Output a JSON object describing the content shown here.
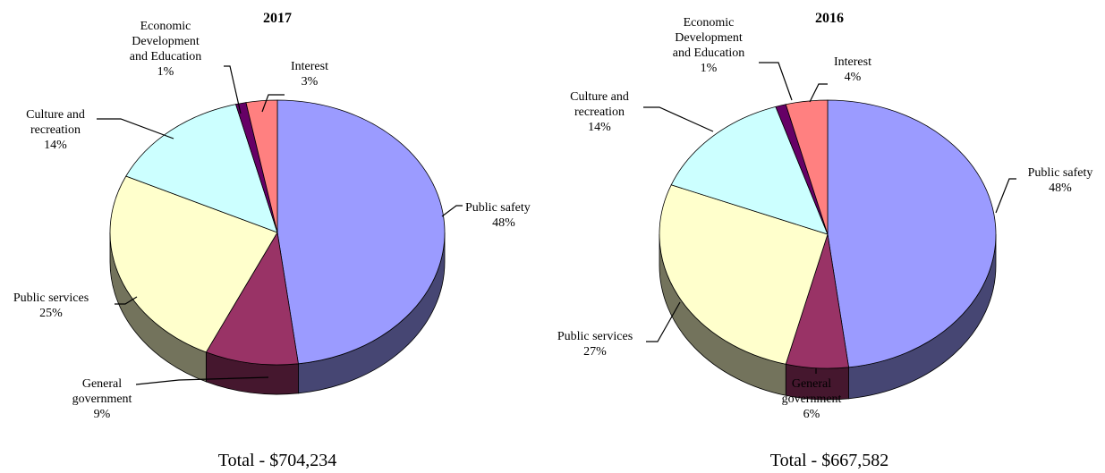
{
  "colors": {
    "public_safety": "#9b9bff",
    "general_government": "#993366",
    "public_services": "#ffffcc",
    "culture_and_recreation": "#ccffff",
    "economic_development_and_education": "#660066",
    "interest": "#ff8080"
  },
  "chart_data": [
    {
      "type": "pie",
      "title": "2017",
      "total_label": "Total - $704,234",
      "slices": [
        {
          "key": "public_safety",
          "label": [
            "Public safety"
          ],
          "pct": "48%",
          "value": 48
        },
        {
          "key": "general_government",
          "label": [
            "General",
            "government"
          ],
          "pct": "9%",
          "value": 9
        },
        {
          "key": "public_services",
          "label": [
            "Public services"
          ],
          "pct": "25%",
          "value": 25
        },
        {
          "key": "culture_and_recreation",
          "label": [
            "Culture and",
            "recreation"
          ],
          "pct": "14%",
          "value": 14
        },
        {
          "key": "economic_development_and_education",
          "label": [
            "Economic",
            "Development",
            "and Education"
          ],
          "pct": "1%",
          "value": 1
        },
        {
          "key": "interest",
          "label": [
            "Interest"
          ],
          "pct": "3%",
          "value": 3
        }
      ]
    },
    {
      "type": "pie",
      "title": "2016",
      "total_label": "Total - $667,582",
      "slices": [
        {
          "key": "public_safety",
          "label": [
            "Public safety"
          ],
          "pct": "48%",
          "value": 48
        },
        {
          "key": "general_government",
          "label": [
            "General",
            "government"
          ],
          "pct": "6%",
          "value": 6
        },
        {
          "key": "public_services",
          "label": [
            "Public services"
          ],
          "pct": "27%",
          "value": 27
        },
        {
          "key": "culture_and_recreation",
          "label": [
            "Culture and",
            "recreation"
          ],
          "pct": "14%",
          "value": 14
        },
        {
          "key": "economic_development_and_education",
          "label": [
            "Economic",
            "Development",
            "and Education"
          ],
          "pct": "1%",
          "value": 1
        },
        {
          "key": "interest",
          "label": [
            "Interest"
          ],
          "pct": "4%",
          "value": 4
        }
      ]
    }
  ]
}
